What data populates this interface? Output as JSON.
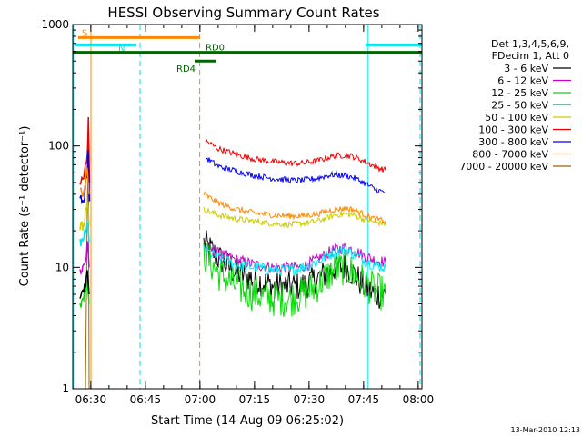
{
  "chart_data": {
    "type": "line",
    "title": "HESSI Observing Summary Count Rates",
    "xlabel": "Start Time (14-Aug-09 06:25:02)",
    "ylabel": "Count Rate (s⁻¹ detector⁻¹)",
    "y_scale": "log",
    "ylim": [
      1,
      1000
    ],
    "xlim": [
      "06:25:02",
      "08:01:00"
    ],
    "x_unit": "minutes since 06:25:02",
    "x_ticks": [
      "06:30",
      "06:45",
      "07:00",
      "07:15",
      "07:30",
      "07:45",
      "08:00"
    ],
    "y_ticks": [
      "1",
      "10",
      "100",
      "1000"
    ],
    "timestamp": "13-Mar-2010 12:13",
    "legend": {
      "position": "right",
      "header": [
        "Det 1,3,4,5,6,9,",
        "FDecim 1, Att 0"
      ]
    },
    "series": [
      {
        "name": "3 - 6 keV",
        "color": "#000000",
        "points": [
          [
            36,
            16
          ],
          [
            40,
            12
          ],
          [
            45,
            9
          ],
          [
            50,
            8
          ],
          [
            55,
            7
          ],
          [
            60,
            7
          ],
          [
            63,
            7
          ],
          [
            67,
            8
          ],
          [
            70,
            9
          ],
          [
            72,
            10
          ],
          [
            75,
            10
          ],
          [
            77,
            9
          ],
          [
            80,
            7
          ],
          [
            83,
            6
          ],
          [
            86,
            6
          ]
        ]
      },
      {
        "name": "6 - 12 keV",
        "color": "#cc00cc",
        "points": [
          [
            36,
            15
          ],
          [
            40,
            13
          ],
          [
            45,
            11.5
          ],
          [
            50,
            10.5
          ],
          [
            55,
            10
          ],
          [
            60,
            10
          ],
          [
            63,
            10
          ],
          [
            67,
            11.5
          ],
          [
            70,
            13
          ],
          [
            72,
            14
          ],
          [
            75,
            14.5
          ],
          [
            77,
            14
          ],
          [
            80,
            12.5
          ],
          [
            83,
            11.5
          ],
          [
            86,
            11
          ]
        ]
      },
      {
        "name": "12 - 25 keV",
        "color": "#00dd00",
        "points": [
          [
            36,
            13
          ],
          [
            40,
            9
          ],
          [
            45,
            7
          ],
          [
            50,
            6
          ],
          [
            55,
            5.5
          ],
          [
            60,
            5.5
          ],
          [
            63,
            6
          ],
          [
            67,
            7
          ],
          [
            70,
            8.5
          ],
          [
            72,
            9.5
          ],
          [
            75,
            10
          ],
          [
            77,
            9
          ],
          [
            80,
            7.5
          ],
          [
            83,
            6.5
          ],
          [
            86,
            6
          ]
        ]
      },
      {
        "name": "25 - 50 keV",
        "color": "#00e5ee",
        "points": [
          [
            36,
            14
          ],
          [
            40,
            12
          ],
          [
            45,
            10.5
          ],
          [
            50,
            10
          ],
          [
            55,
            9.5
          ],
          [
            60,
            9.5
          ],
          [
            63,
            10
          ],
          [
            67,
            11
          ],
          [
            70,
            12.5
          ],
          [
            72,
            13.5
          ],
          [
            75,
            14
          ],
          [
            77,
            13
          ],
          [
            80,
            11.5
          ],
          [
            83,
            10.5
          ],
          [
            86,
            10
          ]
        ]
      },
      {
        "name": "50 - 100 keV",
        "color": "#cccc00",
        "points": [
          [
            36,
            30
          ],
          [
            40,
            27
          ],
          [
            45,
            25
          ],
          [
            50,
            24
          ],
          [
            55,
            23
          ],
          [
            60,
            22.5
          ],
          [
            63,
            23
          ],
          [
            67,
            24
          ],
          [
            70,
            25.5
          ],
          [
            72,
            27
          ],
          [
            75,
            27.5
          ],
          [
            77,
            27
          ],
          [
            80,
            25
          ],
          [
            83,
            23.5
          ],
          [
            86,
            23
          ]
        ]
      },
      {
        "name": "100 - 300 keV",
        "color": "#ee0000",
        "points": [
          [
            36.5,
            110
          ],
          [
            40,
            95
          ],
          [
            45,
            85
          ],
          [
            50,
            78
          ],
          [
            55,
            74
          ],
          [
            60,
            72
          ],
          [
            63,
            72
          ],
          [
            67,
            75
          ],
          [
            70,
            80
          ],
          [
            72,
            83
          ],
          [
            75,
            84
          ],
          [
            77,
            82
          ],
          [
            80,
            75
          ],
          [
            83,
            68
          ],
          [
            86,
            63
          ]
        ]
      },
      {
        "name": "300 - 800 keV",
        "color": "#0000ee",
        "points": [
          [
            36.5,
            80
          ],
          [
            40,
            68
          ],
          [
            45,
            62
          ],
          [
            50,
            57
          ],
          [
            55,
            54
          ],
          [
            60,
            52
          ],
          [
            63,
            52
          ],
          [
            67,
            54
          ],
          [
            70,
            57
          ],
          [
            72,
            58
          ],
          [
            75,
            57
          ],
          [
            77,
            55
          ],
          [
            80,
            50
          ],
          [
            83,
            44
          ],
          [
            86,
            41
          ]
        ]
      },
      {
        "name": "800 - 7000 keV",
        "color": "#ff8800",
        "points": [
          [
            36,
            40
          ],
          [
            40,
            34
          ],
          [
            45,
            30
          ],
          [
            50,
            28
          ],
          [
            55,
            27
          ],
          [
            60,
            26.5
          ],
          [
            63,
            26.5
          ],
          [
            67,
            27.5
          ],
          [
            70,
            29
          ],
          [
            72,
            30
          ],
          [
            75,
            30.5
          ],
          [
            77,
            30
          ],
          [
            80,
            27.5
          ],
          [
            83,
            25
          ],
          [
            86,
            24
          ]
        ]
      },
      {
        "name": "7000 - 20000 keV",
        "color": "#996600",
        "points": [
          [
            3.5,
            1
          ],
          [
            4,
            30
          ],
          [
            4.3,
            110
          ],
          [
            4.5,
            1
          ]
        ]
      }
    ],
    "pre_flare_series": [
      {
        "color": "#ee0000",
        "points": [
          [
            2,
            50
          ],
          [
            3,
            52
          ],
          [
            4,
            90
          ],
          [
            4.3,
            160
          ],
          [
            4.6,
            50
          ]
        ]
      },
      {
        "color": "#0000ee",
        "points": [
          [
            2,
            35
          ],
          [
            3,
            36
          ],
          [
            4,
            60
          ],
          [
            4.3,
            100
          ],
          [
            4.6,
            35
          ]
        ]
      },
      {
        "color": "#ff8800",
        "points": [
          [
            2,
            40
          ],
          [
            3,
            42
          ],
          [
            4,
            70
          ],
          [
            4.5,
            40
          ]
        ]
      },
      {
        "color": "#cccc00",
        "points": [
          [
            2,
            22
          ],
          [
            3,
            22
          ],
          [
            4,
            35
          ],
          [
            4.5,
            22
          ]
        ]
      },
      {
        "color": "#00e5ee",
        "points": [
          [
            2,
            16
          ],
          [
            3,
            17
          ],
          [
            4,
            25
          ],
          [
            4.5,
            16
          ]
        ]
      },
      {
        "color": "#cc00cc",
        "points": [
          [
            2,
            10
          ],
          [
            3,
            10
          ],
          [
            4,
            15
          ],
          [
            4.5,
            10
          ]
        ]
      },
      {
        "color": "#00dd00",
        "points": [
          [
            2,
            5
          ],
          [
            3,
            6
          ],
          [
            4,
            8
          ],
          [
            4.5,
            5
          ]
        ]
      },
      {
        "color": "#000000",
        "points": [
          [
            2,
            6
          ],
          [
            3,
            6
          ],
          [
            4,
            9
          ],
          [
            4.5,
            6
          ]
        ]
      }
    ],
    "flag_bars": [
      {
        "label": "S",
        "color": "#ff8800",
        "y": 780,
        "x_start": 1.5,
        "x_end": 35.0,
        "label_x": 1.5
      },
      {
        "label": "N",
        "color": "#00e5ee",
        "y": 680,
        "x_start": 0.8,
        "x_end": 17.5,
        "label_x": 11.5
      },
      {
        "label": "",
        "color": "#00e5ee",
        "y": 680,
        "x_start": 80.5,
        "x_end": 96.0,
        "label_x": 80.5
      },
      {
        "label": "RD0",
        "color": "#006600",
        "y": 590,
        "x_start": 0.0,
        "x_end": 96.0,
        "label_x": 35.5
      },
      {
        "label": "RD4",
        "color": "#006600",
        "y": 500,
        "x_start": 33.5,
        "x_end": 39.5,
        "label_x": 27.5
      }
    ],
    "vlines": [
      {
        "x": 0.2,
        "color": "#00e5ee",
        "style": "solid"
      },
      {
        "x": 5.0,
        "color": "#ff8800",
        "style": "solid"
      },
      {
        "x": 18.5,
        "color": "#00e5ee",
        "style": "dashed"
      },
      {
        "x": 34.9,
        "color": "#ff8800",
        "style": "dashed"
      },
      {
        "x": 81.2,
        "color": "#00e5ee",
        "style": "solid"
      },
      {
        "x": 95.5,
        "color": "#00e5ee",
        "style": "dashed"
      }
    ]
  }
}
